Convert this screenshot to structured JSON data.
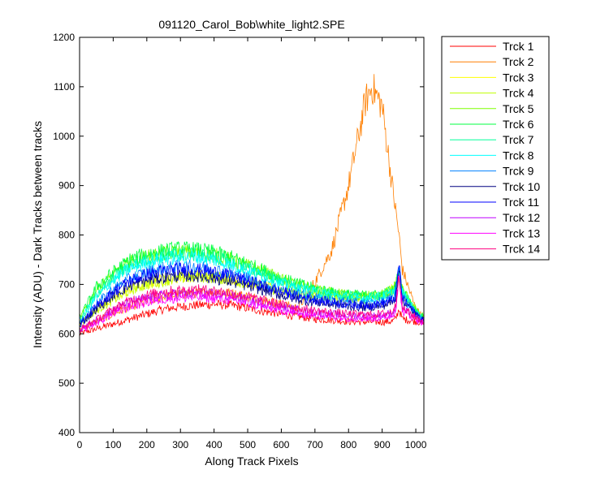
{
  "chart_data": {
    "type": "line",
    "title": "091120_Carol_Bob\\white_light2.SPE",
    "xlabel": "Along Track Pixels",
    "ylabel": "Intensity (ADU) - Dark Tracks between tracks",
    "xlim": [
      0,
      1024
    ],
    "ylim": [
      400,
      1200
    ],
    "xticks": [
      0,
      100,
      200,
      300,
      400,
      500,
      600,
      700,
      800,
      900,
      1000
    ],
    "yticks": [
      400,
      500,
      600,
      700,
      800,
      900,
      1000,
      1100,
      1200
    ],
    "grid": false,
    "legend_position": "outside-right",
    "x": [
      0,
      50,
      100,
      150,
      200,
      250,
      300,
      350,
      400,
      450,
      500,
      550,
      600,
      650,
      700,
      750,
      800,
      850,
      870,
      900,
      930,
      940,
      950,
      960,
      1000,
      1024
    ],
    "series": [
      {
        "name": "Trck 1",
        "color": "#ff0000",
        "values": [
          600,
          610,
          620,
          630,
          640,
          650,
          655,
          658,
          660,
          658,
          652,
          645,
          640,
          635,
          630,
          628,
          625,
          624,
          624,
          624,
          625,
          630,
          650,
          630,
          625,
          622
        ]
      },
      {
        "name": "Trck 2",
        "color": "#ff7f00",
        "values": [
          610,
          625,
          640,
          655,
          665,
          675,
          680,
          683,
          685,
          682,
          675,
          668,
          660,
          652,
          705,
          770,
          900,
          1070,
          1100,
          1060,
          900,
          850,
          800,
          730,
          650,
          630
        ]
      },
      {
        "name": "Trck 3",
        "color": "#ffff00",
        "values": [
          620,
          650,
          670,
          690,
          700,
          710,
          715,
          718,
          716,
          712,
          704,
          695,
          688,
          682,
          678,
          676,
          674,
          674,
          676,
          680,
          690,
          700,
          720,
          690,
          645,
          630
        ]
      },
      {
        "name": "Trck 4",
        "color": "#bfff00",
        "values": [
          620,
          648,
          668,
          688,
          700,
          708,
          713,
          716,
          714,
          710,
          702,
          694,
          686,
          680,
          676,
          673,
          672,
          672,
          674,
          678,
          686,
          696,
          715,
          685,
          642,
          628
        ]
      },
      {
        "name": "Trck 5",
        "color": "#7fff00",
        "values": [
          630,
          690,
          720,
          745,
          755,
          762,
          766,
          765,
          760,
          750,
          738,
          725,
          710,
          700,
          690,
          683,
          678,
          676,
          678,
          680,
          690,
          700,
          730,
          690,
          648,
          632
        ]
      },
      {
        "name": "Trck 6",
        "color": "#00ff40",
        "values": [
          630,
          695,
          725,
          750,
          762,
          768,
          772,
          770,
          765,
          755,
          742,
          728,
          712,
          702,
          692,
          684,
          680,
          678,
          678,
          680,
          688,
          698,
          728,
          688,
          646,
          630
        ]
      },
      {
        "name": "Trck 7",
        "color": "#00ff99",
        "values": [
          625,
          680,
          712,
          738,
          750,
          758,
          762,
          760,
          755,
          745,
          732,
          720,
          705,
          695,
          686,
          680,
          676,
          674,
          675,
          677,
          684,
          694,
          725,
          685,
          645,
          630
        ]
      },
      {
        "name": "Trck 8",
        "color": "#00ffff",
        "values": [
          625,
          675,
          708,
          732,
          745,
          752,
          756,
          755,
          750,
          740,
          728,
          716,
          702,
          692,
          684,
          678,
          674,
          672,
          673,
          675,
          682,
          692,
          722,
          683,
          644,
          628
        ]
      },
      {
        "name": "Trck 9",
        "color": "#0080ff",
        "values": [
          620,
          660,
          690,
          712,
          725,
          732,
          736,
          735,
          730,
          722,
          712,
          700,
          690,
          680,
          674,
          668,
          664,
          662,
          663,
          665,
          672,
          682,
          735,
          675,
          640,
          628
        ]
      },
      {
        "name": "Trck 10",
        "color": "#000080",
        "values": [
          618,
          650,
          678,
          698,
          708,
          714,
          718,
          717,
          713,
          706,
          697,
          688,
          678,
          670,
          664,
          660,
          656,
          654,
          655,
          657,
          664,
          674,
          740,
          668,
          638,
          626
        ]
      },
      {
        "name": "Trck 11",
        "color": "#0000ff",
        "values": [
          618,
          655,
          685,
          708,
          720,
          727,
          731,
          730,
          725,
          717,
          707,
          696,
          685,
          676,
          669,
          664,
          660,
          658,
          659,
          661,
          668,
          678,
          745,
          672,
          640,
          628
        ]
      },
      {
        "name": "Trck 12",
        "color": "#bf00ff",
        "values": [
          608,
          628,
          648,
          664,
          672,
          678,
          681,
          682,
          680,
          676,
          669,
          661,
          654,
          648,
          643,
          640,
          637,
          636,
          636,
          637,
          642,
          652,
          720,
          650,
          632,
          624
        ]
      },
      {
        "name": "Trck 13",
        "color": "#ff00ff",
        "values": [
          605,
          622,
          640,
          655,
          664,
          670,
          673,
          674,
          672,
          668,
          661,
          654,
          647,
          641,
          637,
          634,
          632,
          631,
          631,
          632,
          637,
          648,
          715,
          645,
          630,
          622
        ]
      },
      {
        "name": "Trck 14",
        "color": "#ff0080",
        "values": [
          607,
          628,
          650,
          668,
          678,
          685,
          688,
          689,
          687,
          682,
          675,
          667,
          659,
          652,
          647,
          643,
          640,
          639,
          639,
          640,
          645,
          656,
          725,
          652,
          633,
          624
        ]
      }
    ]
  }
}
